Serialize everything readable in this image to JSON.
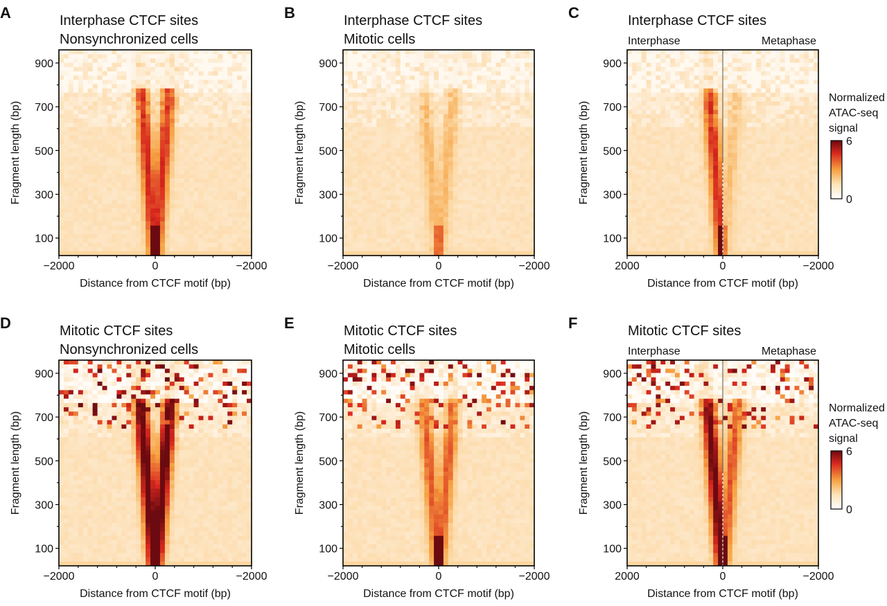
{
  "chart_data": [
    {
      "type": "heatmap",
      "panel": "A",
      "title_lines": [
        "Interphase CTCF sites",
        "Nonsynchronized cells"
      ],
      "xlabel": "Distance from CTCF motif (bp)",
      "ylabel": "Fragment length (bp)",
      "x_ticks": [
        "−2000",
        "0",
        "−2000"
      ],
      "y_ticks": [
        900,
        700,
        500,
        300,
        100
      ],
      "xlim": [
        -2000,
        2000
      ],
      "ylim": [
        20,
        960
      ],
      "mirrored_halves": false,
      "intensity": 1.0,
      "v_width": 550,
      "dense_top": false
    },
    {
      "type": "heatmap",
      "panel": "B",
      "title_lines": [
        "Interphase CTCF sites",
        "Mitotic cells"
      ],
      "xlabel": "Distance from CTCF motif (bp)",
      "ylabel": "Fragment length (bp)",
      "x_ticks": [
        "−2000",
        "0",
        "−2000"
      ],
      "y_ticks": [
        900,
        700,
        500,
        300,
        100
      ],
      "xlim": [
        -2000,
        2000
      ],
      "ylim": [
        20,
        960
      ],
      "mirrored_halves": false,
      "intensity": 0.35,
      "v_width": 600,
      "dense_top": false
    },
    {
      "type": "heatmap",
      "panel": "C",
      "title_lines": [
        "Interphase CTCF sites"
      ],
      "halves": [
        "Interphase",
        "Metaphase"
      ],
      "xlabel": "Distance from CTCF motif (bp)",
      "ylabel": "Fragment length (bp)",
      "x_ticks": [
        "2000",
        "0",
        "−2000"
      ],
      "y_ticks": [
        900,
        700,
        500,
        300,
        100
      ],
      "xlim": [
        2000,
        -2000
      ],
      "ylim": [
        20,
        960
      ],
      "mirrored_halves": true,
      "intensity": 1.0,
      "v_width": 550,
      "dense_top": false,
      "colorbar": {
        "title_lines": [
          "Normalized",
          "ATAC-seq",
          "signal"
        ],
        "min": 0,
        "max": 6
      }
    },
    {
      "type": "heatmap",
      "panel": "D",
      "title_lines": [
        "Mitotic CTCF sites",
        "Nonsynchronized cells"
      ],
      "xlabel": "Distance from CTCF motif (bp)",
      "ylabel": "Fragment length (bp)",
      "x_ticks": [
        "−2000",
        "0",
        "−2000"
      ],
      "y_ticks": [
        900,
        700,
        500,
        300,
        100
      ],
      "xlim": [
        -2000,
        2000
      ],
      "ylim": [
        20,
        960
      ],
      "mirrored_halves": false,
      "intensity": 1.6,
      "v_width": 600,
      "dense_top": true
    },
    {
      "type": "heatmap",
      "panel": "E",
      "title_lines": [
        "Mitotic CTCF sites",
        "Mitotic cells"
      ],
      "xlabel": "Distance from CTCF motif (bp)",
      "ylabel": "Fragment length (bp)",
      "x_ticks": [
        "−2000",
        "0",
        "−2000"
      ],
      "y_ticks": [
        900,
        700,
        500,
        300,
        100
      ],
      "xlim": [
        -2000,
        2000
      ],
      "ylim": [
        20,
        960
      ],
      "mirrored_halves": false,
      "intensity": 0.8,
      "v_width": 600,
      "dense_top": true
    },
    {
      "type": "heatmap",
      "panel": "F",
      "title_lines": [
        "Mitotic CTCF sites"
      ],
      "halves": [
        "Interphase",
        "Metaphase"
      ],
      "xlabel": "Distance from CTCF motif (bp)",
      "ylabel": "Fragment length (bp)",
      "x_ticks": [
        "2000",
        "0",
        "−2000"
      ],
      "y_ticks": [
        900,
        700,
        500,
        300,
        100
      ],
      "xlim": [
        2000,
        -2000
      ],
      "ylim": [
        20,
        960
      ],
      "mirrored_halves": true,
      "intensity": 1.5,
      "v_width": 600,
      "dense_top": true,
      "colorbar": {
        "title_lines": [
          "Normalized",
          "ATAC-seq",
          "signal"
        ],
        "min": 0,
        "max": 6
      }
    }
  ],
  "colors": {
    "low": "#ffffff",
    "mid_low": "#fde6c4",
    "mid": "#f7a24a",
    "high": "#d8281e",
    "max": "#6b0a10"
  }
}
